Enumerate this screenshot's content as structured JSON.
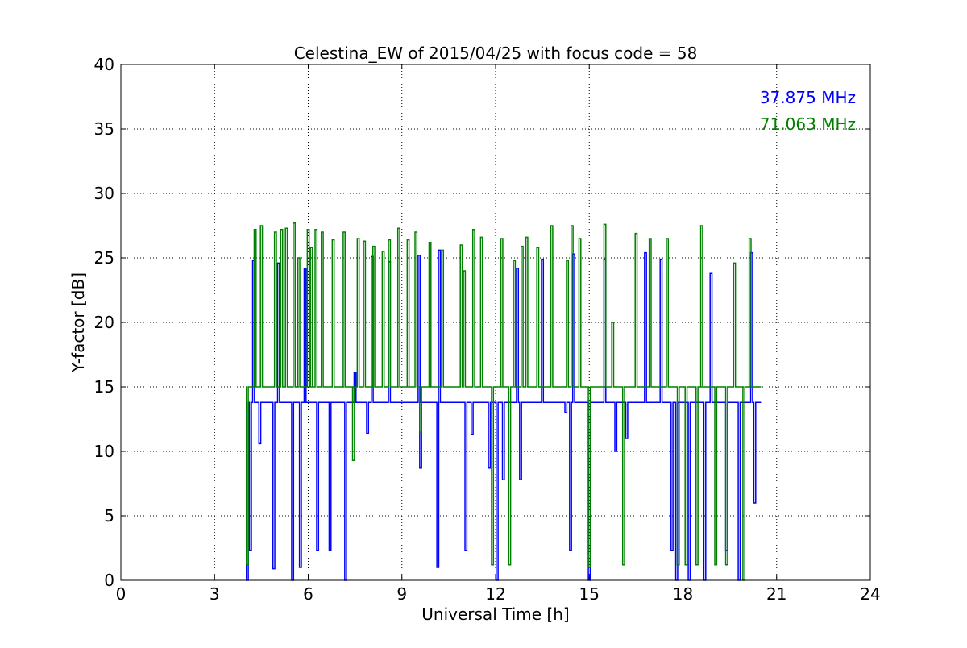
{
  "chart_data": {
    "type": "line",
    "title": "Celestina_EW of 2015/04/25 with focus code = 58",
    "xlabel": "Universal Time [h]",
    "ylabel": "Y-factor [dB]",
    "xlim": [
      0,
      24
    ],
    "ylim": [
      0,
      40
    ],
    "xticks": [
      0,
      3,
      6,
      9,
      12,
      15,
      18,
      21,
      24
    ],
    "yticks": [
      0,
      5,
      10,
      15,
      20,
      25,
      30,
      35,
      40
    ],
    "grid": true,
    "legend": "top-right",
    "series": [
      {
        "name": "37.875 MHz",
        "color": "#0000ff",
        "baseline": 13.8,
        "x_range": [
          4.0,
          20.5
        ],
        "spikes": [
          [
            4.05,
            0.0
          ],
          [
            4.15,
            2.3
          ],
          [
            4.25,
            24.8
          ],
          [
            4.45,
            10.6
          ],
          [
            4.9,
            0.9
          ],
          [
            5.05,
            24.6
          ],
          [
            5.5,
            0.0
          ],
          [
            5.75,
            1.0
          ],
          [
            5.9,
            24.2
          ],
          [
            6.3,
            2.3
          ],
          [
            6.7,
            2.3
          ],
          [
            7.2,
            0.0
          ],
          [
            7.5,
            16.1
          ],
          [
            7.9,
            11.4
          ],
          [
            8.05,
            25.1
          ],
          [
            8.6,
            24.7
          ],
          [
            9.55,
            25.2
          ],
          [
            9.6,
            8.7
          ],
          [
            10.15,
            1.0
          ],
          [
            10.2,
            25.6
          ],
          [
            11.05,
            2.3
          ],
          [
            11.25,
            11.3
          ],
          [
            11.8,
            8.7
          ],
          [
            12.05,
            0.0
          ],
          [
            12.25,
            7.8
          ],
          [
            12.7,
            24.2
          ],
          [
            12.8,
            7.8
          ],
          [
            13.5,
            24.9
          ],
          [
            14.25,
            13.0
          ],
          [
            14.4,
            2.3
          ],
          [
            14.5,
            25.3
          ],
          [
            15.0,
            0.0
          ],
          [
            15.5,
            24.9
          ],
          [
            15.85,
            10.0
          ],
          [
            16.2,
            11.0
          ],
          [
            16.8,
            25.4
          ],
          [
            17.3,
            24.9
          ],
          [
            17.65,
            2.3
          ],
          [
            17.8,
            0.0
          ],
          [
            18.2,
            0.0
          ],
          [
            18.7,
            0.0
          ],
          [
            18.9,
            23.8
          ],
          [
            19.4,
            2.3
          ],
          [
            19.8,
            0.0
          ],
          [
            20.2,
            25.4
          ],
          [
            20.3,
            6.0
          ]
        ]
      },
      {
        "name": "71.063 MHz",
        "color": "#008000",
        "baseline": 15.0,
        "x_range": [
          4.0,
          20.5
        ],
        "spikes": [
          [
            4.05,
            1.2
          ],
          [
            4.3,
            27.2
          ],
          [
            4.5,
            27.5
          ],
          [
            4.95,
            27.0
          ],
          [
            5.15,
            27.2
          ],
          [
            5.3,
            27.3
          ],
          [
            5.55,
            27.7
          ],
          [
            5.7,
            25.0
          ],
          [
            6.0,
            27.2
          ],
          [
            6.1,
            25.8
          ],
          [
            6.25,
            27.2
          ],
          [
            6.45,
            27.0
          ],
          [
            6.8,
            26.4
          ],
          [
            7.15,
            27.0
          ],
          [
            7.45,
            9.3
          ],
          [
            7.6,
            26.5
          ],
          [
            7.8,
            26.3
          ],
          [
            8.1,
            25.9
          ],
          [
            8.4,
            25.5
          ],
          [
            8.6,
            26.4
          ],
          [
            8.9,
            27.3
          ],
          [
            9.2,
            26.4
          ],
          [
            9.45,
            27.0
          ],
          [
            9.6,
            11.5
          ],
          [
            9.9,
            26.2
          ],
          [
            10.3,
            25.6
          ],
          [
            10.9,
            26.0
          ],
          [
            11.0,
            24.0
          ],
          [
            11.3,
            27.2
          ],
          [
            11.55,
            26.6
          ],
          [
            11.9,
            1.2
          ],
          [
            12.2,
            26.5
          ],
          [
            12.45,
            1.2
          ],
          [
            12.6,
            24.8
          ],
          [
            12.85,
            25.9
          ],
          [
            13.0,
            26.6
          ],
          [
            13.35,
            25.8
          ],
          [
            13.8,
            27.5
          ],
          [
            14.3,
            24.8
          ],
          [
            14.45,
            27.5
          ],
          [
            14.7,
            26.5
          ],
          [
            15.0,
            1.0
          ],
          [
            15.5,
            27.6
          ],
          [
            15.75,
            20.0
          ],
          [
            16.1,
            1.2
          ],
          [
            16.5,
            26.9
          ],
          [
            16.95,
            26.5
          ],
          [
            17.5,
            26.5
          ],
          [
            17.85,
            1.2
          ],
          [
            18.1,
            1.2
          ],
          [
            18.45,
            1.2
          ],
          [
            18.6,
            27.5
          ],
          [
            19.05,
            1.2
          ],
          [
            19.4,
            1.2
          ],
          [
            19.65,
            24.6
          ],
          [
            19.95,
            0.0
          ],
          [
            20.15,
            26.5
          ]
        ]
      }
    ]
  }
}
